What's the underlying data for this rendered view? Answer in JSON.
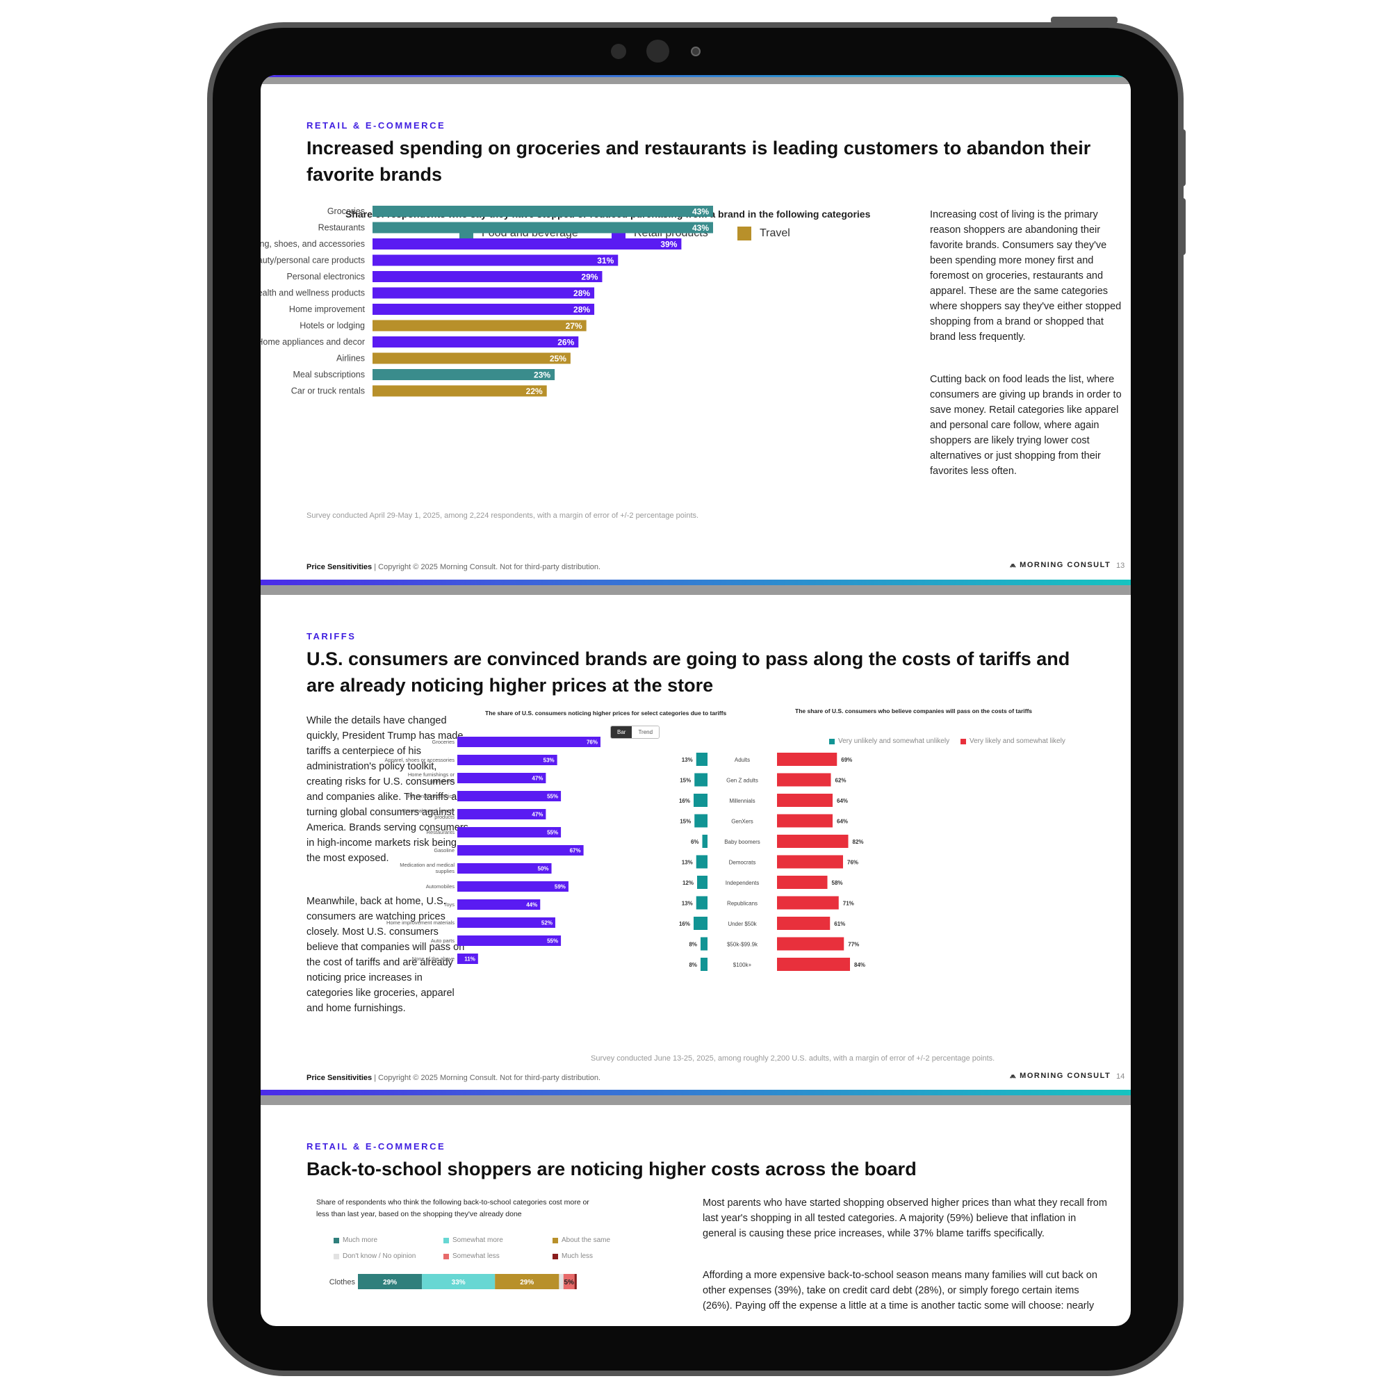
{
  "colors": {
    "food": "#3a8c8c",
    "retail": "#5a1bf2",
    "travel": "#b8902a",
    "teal": "#119494",
    "red": "#e8303c",
    "accent": "#3f1ee0",
    "stack": [
      "#2f7f7c",
      "#67d7d3",
      "#b8902a",
      "#e2e2e2",
      "#e76a6a",
      "#8a1d1d"
    ]
  },
  "footer": {
    "report_name": "Price Sensitivities",
    "copyright": "| Copyright © 2025 Morning Consult. Not for third-party distribution.",
    "brand": "MORNING CONSULT"
  },
  "page13": {
    "kicker": "RETAIL & E-COMMERCE",
    "title_line1": "Increased spending on groceries and restaurants is leading customers to abandon their",
    "title_line2": "favorite brands",
    "body_p1": [
      "Increasing cost of living is the primary",
      "reason shoppers are abandoning their",
      "favorite brands. Consumers say they've",
      "been spending more money first and",
      "foremost on groceries, restaurants and",
      "apparel. These are the same categories",
      "where shoppers say they've either stopped",
      "shopping from a brand or shopped that",
      "brand less frequently."
    ],
    "body_p2": [
      "Cutting back on food leads the list, where",
      "consumers are giving up brands in order to",
      "save money. Retail categories like apparel",
      "and personal care follow, where again",
      "shoppers are likely trying lower cost",
      "alternatives or just shopping from their",
      "favorites less often."
    ],
    "note": "Survey conducted April 29-May 1, 2025, among 2,224 respondents, with a margin of error of +/-2 percentage points.",
    "page_number": "13"
  },
  "page14": {
    "kicker": "TARIFFS",
    "title_line1": "U.S. consumers are convinced brands are going to pass along the costs of tariffs and",
    "title_line2": "are already noticing higher prices at the store",
    "body_p1": [
      "While the details have changed",
      "quickly, President Trump has made",
      "tariffs a centerpiece of his",
      "administration's policy toolkit,",
      "creating risks for U.S. consumers",
      "and companies alike. The tariffs are",
      "turning global consumers against",
      "America. Brands serving consumers",
      "in high-income markets risk being",
      "the most exposed."
    ],
    "body_p2": [
      "Meanwhile, back at home, U.S.",
      "consumers are watching prices",
      "closely. Most U.S. consumers",
      "believe that companies will pass on",
      "the cost of tariffs and are already",
      "noticing price increases in",
      "categories like groceries, apparel",
      "and home furnishings."
    ],
    "toggle_bar": "Bar",
    "toggle_trend": "Trend",
    "note": "Survey conducted June 13-25, 2025, among roughly 2,200 U.S. adults, with a margin of error of +/-2 percentage points.",
    "page_number": "14"
  },
  "page15": {
    "kicker": "RETAIL & E-COMMERCE",
    "title": "Back-to-school shoppers are noticing higher costs across the board",
    "chart_title_line1": "Share of respondents who think the following back-to-school categories cost more or",
    "chart_title_line2": "less than last year, based on the shopping they've already done",
    "body_p1": [
      "Most parents who have started shopping observed higher prices than what they recall from",
      "last year's shopping in all tested categories. A majority (59%) believe that inflation in",
      "general is causing these price increases, while 37% blame tariffs specifically."
    ],
    "body_p2": [
      "Affording a more expensive back-to-school season means many families will cut back on",
      "other expenses (39%), take on credit card debt (28%), or simply forego certain items",
      "(26%). Paying off the expense a little at a time is another tactic some will choose: nearly"
    ]
  },
  "chart_data": [
    {
      "type": "bar",
      "orientation": "horizontal",
      "title": "Share of respondents who say they have stopped or reduced purchasing from a brand in the following categories",
      "legend": [
        "Food and beverage",
        "Retail products",
        "Travel"
      ],
      "legend_placement": "top",
      "categories": [
        "Groceries",
        "Restaurants",
        "Clothing, shoes, and accessories",
        "Beauty/personal care products",
        "Personal electronics",
        "Health and wellness products",
        "Home improvement",
        "Hotels or lodging",
        "Home appliances and decor",
        "Airlines",
        "Meal subscriptions",
        "Car or truck rentals"
      ],
      "values": [
        43,
        43,
        39,
        31,
        29,
        28,
        28,
        27,
        26,
        25,
        23,
        22
      ],
      "groups": [
        "Food and beverage",
        "Food and beverage",
        "Retail products",
        "Retail products",
        "Retail products",
        "Retail products",
        "Retail products",
        "Travel",
        "Retail products",
        "Travel",
        "Food and beverage",
        "Travel"
      ],
      "unit": "%",
      "xlim": [
        0,
        43
      ]
    },
    {
      "type": "bar",
      "orientation": "horizontal",
      "title": "The share of U.S. consumers noticing higher prices for select categories due to tariffs",
      "categories": [
        [
          "Groceries"
        ],
        [
          "Apparel, shoes or accessories"
        ],
        [
          "Home furnishings or",
          "appliances"
        ],
        [
          "Personal electronics"
        ],
        [
          "Personal care / beauty",
          "products"
        ],
        [
          "Restaurants"
        ],
        [
          "Gasoline"
        ],
        [
          "Medication and medical",
          "supplies"
        ],
        [
          "Automobiles"
        ],
        [
          "Toys"
        ],
        [
          "Home improvement materials"
        ],
        [
          "Auto parts"
        ],
        [
          "None of the above"
        ]
      ],
      "values": [
        76,
        53,
        47,
        55,
        47,
        55,
        67,
        50,
        59,
        44,
        52,
        55,
        11
      ],
      "unit": "%",
      "xlim": [
        0,
        76
      ]
    },
    {
      "type": "bar",
      "orientation": "horizontal",
      "subtype": "diverging",
      "title": "The share of U.S. consumers who believe companies will pass on the costs of tariffs",
      "categories": [
        "Adults",
        "Gen Z adults",
        "Millennials",
        "GenXers",
        "Baby boomers",
        "Democrats",
        "Independents",
        "Republicans",
        "Under $50k",
        "$50k-$99.9k",
        "$100k+"
      ],
      "series": [
        {
          "name": "Very unlikely and somewhat unlikely",
          "values": [
            13,
            15,
            16,
            15,
            6,
            13,
            12,
            13,
            16,
            8,
            8
          ]
        },
        {
          "name": "Very likely and somewhat likely",
          "values": [
            69,
            62,
            64,
            64,
            82,
            76,
            58,
            71,
            61,
            77,
            84
          ]
        }
      ],
      "unit": "%"
    },
    {
      "type": "bar",
      "orientation": "horizontal",
      "subtype": "stacked-100",
      "title": "Share of respondents who think the following back-to-school categories cost more or less than last year, based on the shopping they've already done",
      "legend": [
        "Much more",
        "Somewhat more",
        "About the same",
        "Don't know / No opinion",
        "Somewhat less",
        "Much less"
      ],
      "categories": [
        "Clothes"
      ],
      "series": [
        {
          "name": "Much more",
          "values": [
            29
          ]
        },
        {
          "name": "Somewhat more",
          "values": [
            33
          ]
        },
        {
          "name": "About the same",
          "values": [
            29
          ]
        },
        {
          "name": "Don't know / No opinion",
          "values": [
            2
          ]
        },
        {
          "name": "Somewhat less",
          "values": [
            5
          ]
        },
        {
          "name": "Much less",
          "values": [
            1
          ]
        }
      ],
      "unit": "%"
    }
  ]
}
